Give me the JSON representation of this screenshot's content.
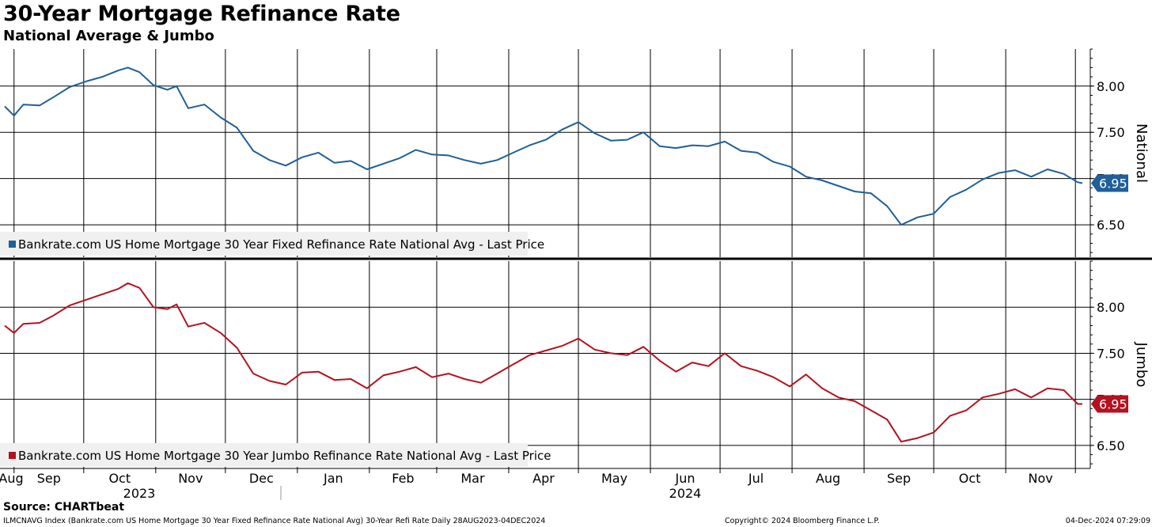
{
  "title": "30-Year Mortgage Refinance Rate",
  "subtitle": "National Average & Jumbo",
  "source": "Source: CHARTbeat",
  "footer": {
    "left": "ILMCNAVG Index (Bankrate.com US Home Mortgage 30 Year Fixed Refinance Rate National Avg) 30-Year Refi Rate  Daily 28AUG2023-04DEC2024",
    "middle": "Copyright© 2024 Bloomberg Finance L.P.",
    "right": "04-Dec-2024 07:29:09"
  },
  "colors": {
    "national": "#1f5f9b",
    "jumbo": "#b3121f"
  },
  "chart_data": {
    "type": "line",
    "x_start": "2023-08-28",
    "x_end": "2024-12-04",
    "month_labels": [
      "Aug",
      "Sep",
      "Oct",
      "Nov",
      "Dec",
      "Jan",
      "Feb",
      "Mar",
      "Apr",
      "May",
      "Jun",
      "Jul",
      "Aug",
      "Sep",
      "Oct",
      "Nov"
    ],
    "year_labels": [
      "2023",
      "2024"
    ],
    "panels": [
      {
        "name": "national",
        "axis_title": "National",
        "ylim": [
          6.15,
          8.4
        ],
        "yticks": [
          "8.00",
          "7.50",
          "7.00",
          "6.50"
        ],
        "last_price": "6.95",
        "legend": "Bankrate.com US Home Mortgage 30 Year Fixed Refinance Rate National Avg - Last Price",
        "series": [
          {
            "x": "2023-08-28",
            "y": 7.78
          },
          {
            "x": "2023-09-01",
            "y": 7.68
          },
          {
            "x": "2023-09-05",
            "y": 7.8
          },
          {
            "x": "2023-09-12",
            "y": 7.79
          },
          {
            "x": "2023-09-18",
            "y": 7.88
          },
          {
            "x": "2023-09-25",
            "y": 7.99
          },
          {
            "x": "2023-10-02",
            "y": 8.05
          },
          {
            "x": "2023-10-09",
            "y": 8.1
          },
          {
            "x": "2023-10-16",
            "y": 8.17
          },
          {
            "x": "2023-10-20",
            "y": 8.2
          },
          {
            "x": "2023-10-25",
            "y": 8.15
          },
          {
            "x": "2023-10-31",
            "y": 8.01
          },
          {
            "x": "2023-11-06",
            "y": 7.96
          },
          {
            "x": "2023-11-10",
            "y": 8.0
          },
          {
            "x": "2023-11-15",
            "y": 7.76
          },
          {
            "x": "2023-11-22",
            "y": 7.8
          },
          {
            "x": "2023-11-29",
            "y": 7.66
          },
          {
            "x": "2023-12-06",
            "y": 7.55
          },
          {
            "x": "2023-12-13",
            "y": 7.3
          },
          {
            "x": "2023-12-20",
            "y": 7.2
          },
          {
            "x": "2023-12-27",
            "y": 7.14
          },
          {
            "x": "2024-01-03",
            "y": 7.23
          },
          {
            "x": "2024-01-10",
            "y": 7.28
          },
          {
            "x": "2024-01-17",
            "y": 7.17
          },
          {
            "x": "2024-01-24",
            "y": 7.19
          },
          {
            "x": "2024-01-31",
            "y": 7.1
          },
          {
            "x": "2024-02-07",
            "y": 7.16
          },
          {
            "x": "2024-02-14",
            "y": 7.22
          },
          {
            "x": "2024-02-21",
            "y": 7.31
          },
          {
            "x": "2024-02-28",
            "y": 7.26
          },
          {
            "x": "2024-03-06",
            "y": 7.25
          },
          {
            "x": "2024-03-13",
            "y": 7.2
          },
          {
            "x": "2024-03-20",
            "y": 7.16
          },
          {
            "x": "2024-03-27",
            "y": 7.2
          },
          {
            "x": "2024-04-03",
            "y": 7.28
          },
          {
            "x": "2024-04-10",
            "y": 7.36
          },
          {
            "x": "2024-04-17",
            "y": 7.42
          },
          {
            "x": "2024-04-24",
            "y": 7.53
          },
          {
            "x": "2024-05-01",
            "y": 7.61
          },
          {
            "x": "2024-05-08",
            "y": 7.49
          },
          {
            "x": "2024-05-15",
            "y": 7.41
          },
          {
            "x": "2024-05-22",
            "y": 7.42
          },
          {
            "x": "2024-05-29",
            "y": 7.5
          },
          {
            "x": "2024-06-05",
            "y": 7.35
          },
          {
            "x": "2024-06-12",
            "y": 7.33
          },
          {
            "x": "2024-06-19",
            "y": 7.36
          },
          {
            "x": "2024-06-26",
            "y": 7.35
          },
          {
            "x": "2024-07-03",
            "y": 7.4
          },
          {
            "x": "2024-07-10",
            "y": 7.3
          },
          {
            "x": "2024-07-17",
            "y": 7.28
          },
          {
            "x": "2024-07-24",
            "y": 7.18
          },
          {
            "x": "2024-07-31",
            "y": 7.13
          },
          {
            "x": "2024-08-07",
            "y": 7.02
          },
          {
            "x": "2024-08-14",
            "y": 6.98
          },
          {
            "x": "2024-08-21",
            "y": 6.92
          },
          {
            "x": "2024-08-28",
            "y": 6.86
          },
          {
            "x": "2024-09-04",
            "y": 6.84
          },
          {
            "x": "2024-09-11",
            "y": 6.7
          },
          {
            "x": "2024-09-17",
            "y": 6.5
          },
          {
            "x": "2024-09-24",
            "y": 6.58
          },
          {
            "x": "2024-10-01",
            "y": 6.62
          },
          {
            "x": "2024-10-08",
            "y": 6.8
          },
          {
            "x": "2024-10-15",
            "y": 6.88
          },
          {
            "x": "2024-10-22",
            "y": 6.99
          },
          {
            "x": "2024-10-29",
            "y": 7.06
          },
          {
            "x": "2024-11-05",
            "y": 7.09
          },
          {
            "x": "2024-11-12",
            "y": 7.02
          },
          {
            "x": "2024-11-19",
            "y": 7.1
          },
          {
            "x": "2024-11-26",
            "y": 7.05
          },
          {
            "x": "2024-12-02",
            "y": 6.96
          },
          {
            "x": "2024-12-04",
            "y": 6.95
          }
        ]
      },
      {
        "name": "jumbo",
        "axis_title": "Jumbo",
        "ylim": [
          6.25,
          8.5
        ],
        "yticks": [
          "8.00",
          "7.50",
          "7.00",
          "6.50"
        ],
        "last_price": "6.95",
        "legend": "Bankrate.com US Home Mortgage 30 Year Jumbo Refinance Rate National Avg - Last Price",
        "series": [
          {
            "x": "2023-08-28",
            "y": 7.8
          },
          {
            "x": "2023-09-01",
            "y": 7.72
          },
          {
            "x": "2023-09-05",
            "y": 7.82
          },
          {
            "x": "2023-09-12",
            "y": 7.83
          },
          {
            "x": "2023-09-18",
            "y": 7.91
          },
          {
            "x": "2023-09-25",
            "y": 8.02
          },
          {
            "x": "2023-10-02",
            "y": 8.08
          },
          {
            "x": "2023-10-09",
            "y": 8.14
          },
          {
            "x": "2023-10-16",
            "y": 8.2
          },
          {
            "x": "2023-10-20",
            "y": 8.26
          },
          {
            "x": "2023-10-25",
            "y": 8.21
          },
          {
            "x": "2023-10-31",
            "y": 8.0
          },
          {
            "x": "2023-11-06",
            "y": 7.98
          },
          {
            "x": "2023-11-10",
            "y": 8.03
          },
          {
            "x": "2023-11-15",
            "y": 7.79
          },
          {
            "x": "2023-11-22",
            "y": 7.83
          },
          {
            "x": "2023-11-29",
            "y": 7.72
          },
          {
            "x": "2023-12-06",
            "y": 7.56
          },
          {
            "x": "2023-12-13",
            "y": 7.28
          },
          {
            "x": "2023-12-20",
            "y": 7.2
          },
          {
            "x": "2023-12-27",
            "y": 7.16
          },
          {
            "x": "2024-01-03",
            "y": 7.29
          },
          {
            "x": "2024-01-10",
            "y": 7.3
          },
          {
            "x": "2024-01-17",
            "y": 7.21
          },
          {
            "x": "2024-01-24",
            "y": 7.22
          },
          {
            "x": "2024-01-31",
            "y": 7.12
          },
          {
            "x": "2024-02-07",
            "y": 7.26
          },
          {
            "x": "2024-02-14",
            "y": 7.3
          },
          {
            "x": "2024-02-21",
            "y": 7.35
          },
          {
            "x": "2024-02-28",
            "y": 7.24
          },
          {
            "x": "2024-03-06",
            "y": 7.28
          },
          {
            "x": "2024-03-13",
            "y": 7.22
          },
          {
            "x": "2024-03-20",
            "y": 7.18
          },
          {
            "x": "2024-03-27",
            "y": 7.28
          },
          {
            "x": "2024-04-03",
            "y": 7.38
          },
          {
            "x": "2024-04-10",
            "y": 7.48
          },
          {
            "x": "2024-04-17",
            "y": 7.53
          },
          {
            "x": "2024-04-24",
            "y": 7.58
          },
          {
            "x": "2024-05-01",
            "y": 7.66
          },
          {
            "x": "2024-05-08",
            "y": 7.54
          },
          {
            "x": "2024-05-15",
            "y": 7.5
          },
          {
            "x": "2024-05-22",
            "y": 7.48
          },
          {
            "x": "2024-05-29",
            "y": 7.57
          },
          {
            "x": "2024-06-05",
            "y": 7.42
          },
          {
            "x": "2024-06-12",
            "y": 7.3
          },
          {
            "x": "2024-06-19",
            "y": 7.4
          },
          {
            "x": "2024-06-26",
            "y": 7.36
          },
          {
            "x": "2024-07-03",
            "y": 7.5
          },
          {
            "x": "2024-07-10",
            "y": 7.36
          },
          {
            "x": "2024-07-17",
            "y": 7.31
          },
          {
            "x": "2024-07-24",
            "y": 7.24
          },
          {
            "x": "2024-07-31",
            "y": 7.14
          },
          {
            "x": "2024-08-07",
            "y": 7.27
          },
          {
            "x": "2024-08-14",
            "y": 7.12
          },
          {
            "x": "2024-08-21",
            "y": 7.02
          },
          {
            "x": "2024-08-28",
            "y": 6.98
          },
          {
            "x": "2024-09-04",
            "y": 6.88
          },
          {
            "x": "2024-09-11",
            "y": 6.78
          },
          {
            "x": "2024-09-17",
            "y": 6.54
          },
          {
            "x": "2024-09-24",
            "y": 6.58
          },
          {
            "x": "2024-10-01",
            "y": 6.64
          },
          {
            "x": "2024-10-08",
            "y": 6.82
          },
          {
            "x": "2024-10-15",
            "y": 6.88
          },
          {
            "x": "2024-10-22",
            "y": 7.02
          },
          {
            "x": "2024-10-29",
            "y": 7.06
          },
          {
            "x": "2024-11-05",
            "y": 7.11
          },
          {
            "x": "2024-11-12",
            "y": 7.02
          },
          {
            "x": "2024-11-19",
            "y": 7.12
          },
          {
            "x": "2024-11-26",
            "y": 7.1
          },
          {
            "x": "2024-12-02",
            "y": 6.95
          },
          {
            "x": "2024-12-04",
            "y": 6.95
          }
        ]
      }
    ]
  }
}
